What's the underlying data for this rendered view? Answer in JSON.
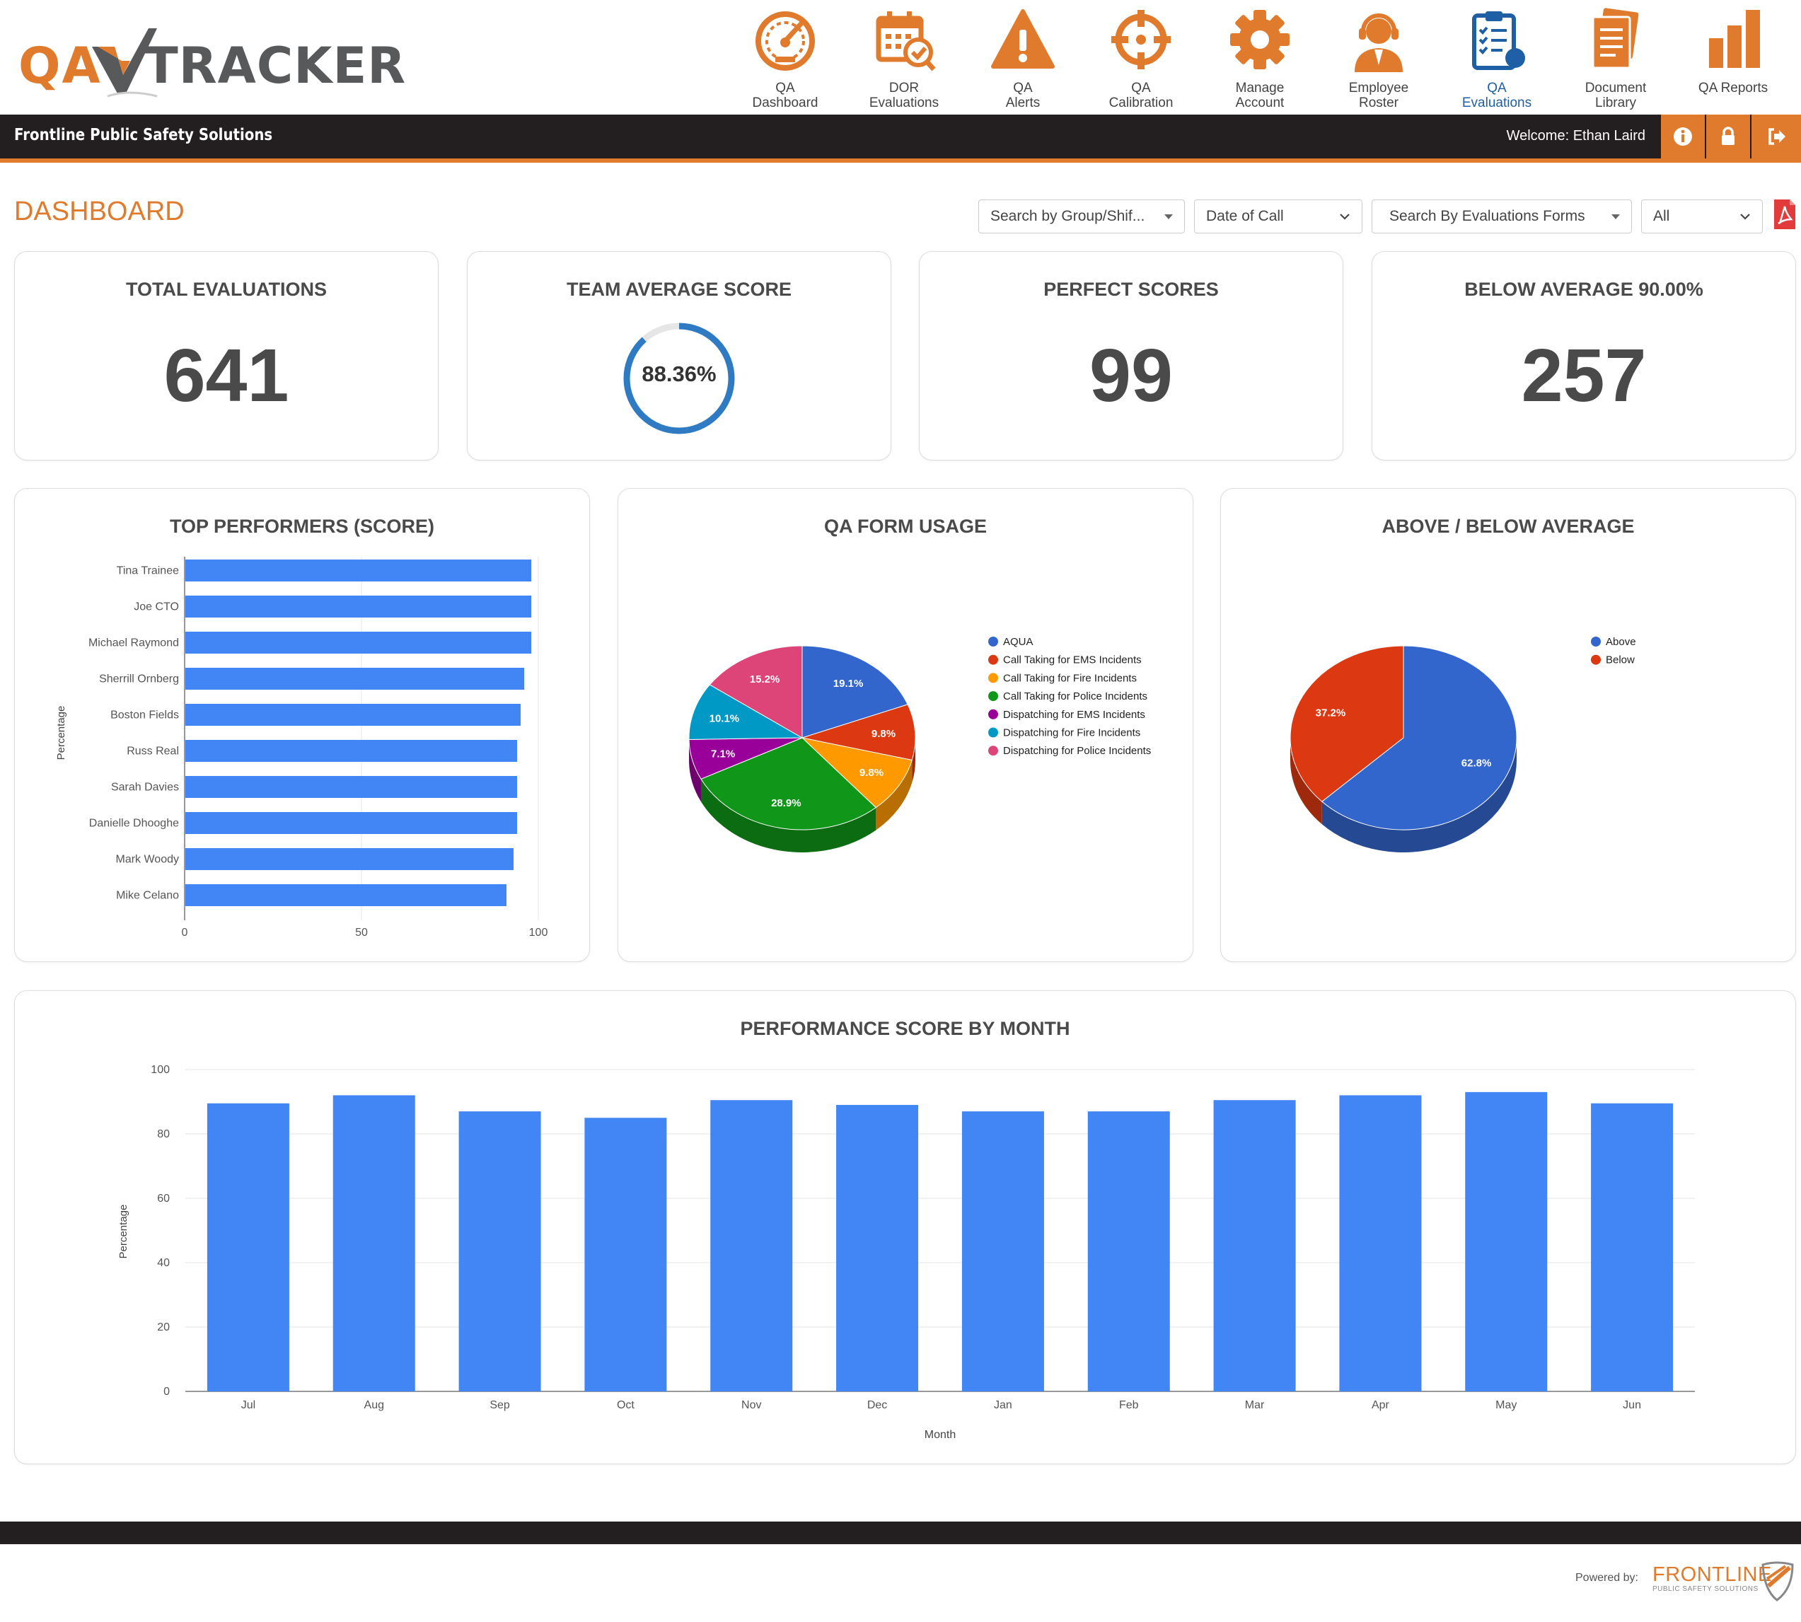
{
  "header": {
    "logo_qa": "QA",
    "logo_tracker": "TRACKER",
    "nav": [
      {
        "label": "QA\nDashboard",
        "icon": "speedometer-icon",
        "active": false
      },
      {
        "label": "DOR\nEvaluations",
        "icon": "calendar-check-icon",
        "active": false
      },
      {
        "label": "QA\nAlerts",
        "icon": "warning-icon",
        "active": false
      },
      {
        "label": "QA\nCalibration",
        "icon": "crosshair-icon",
        "active": false
      },
      {
        "label": "Manage\nAccount",
        "icon": "gear-icon",
        "active": false
      },
      {
        "label": "Employee\nRoster",
        "icon": "headset-user-icon",
        "active": false
      },
      {
        "label": "QA\nEvaluations",
        "icon": "clipboard-checklist-icon",
        "active": true
      },
      {
        "label": "Document\nLibrary",
        "icon": "documents-icon",
        "active": false
      },
      {
        "label": "QA Reports",
        "icon": "bar-chart-icon",
        "active": false
      }
    ]
  },
  "bar": {
    "organization": "Frontline Public Safety Solutions",
    "welcome": "Welcome: Ethan Laird",
    "buttons": [
      "info-icon",
      "lock-icon",
      "logout-icon"
    ]
  },
  "dashboard": {
    "title": "DASHBOARD",
    "filters": {
      "group": "Search by Group/Shif...",
      "date": "Date of Call",
      "forms": "Search By Evaluations Forms",
      "all": "All"
    },
    "pdf_icon": "pdf-icon"
  },
  "stats": {
    "total_evaluations": {
      "title": "TOTAL EVALUATIONS",
      "value": "641"
    },
    "team_average": {
      "title": "TEAM AVERAGE SCORE",
      "value": "88.36%",
      "fraction": 0.8836
    },
    "perfect_scores": {
      "title": "PERFECT SCORES",
      "value": "99"
    },
    "below_average": {
      "title": "BELOW AVERAGE 90.00%",
      "value": "257"
    }
  },
  "colors": {
    "accent": "#e07a2c",
    "bar": "#4285f4",
    "blue": "#3366cc",
    "red": "#dc3912",
    "orange": "#ff9900",
    "green": "#109618",
    "purple": "#990099",
    "teal": "#0099c6",
    "pink": "#dd4477"
  },
  "charts": {
    "top_performers": {
      "title": "TOP PERFORMERS (SCORE)",
      "ylabel": "Percentage",
      "ticks": [
        "0",
        "50",
        "100"
      ]
    },
    "form_usage": {
      "title": "QA FORM USAGE"
    },
    "above_below": {
      "title": "ABOVE / BELOW AVERAGE"
    },
    "monthly": {
      "title": "PERFORMANCE SCORE BY MONTH",
      "ylabel": "Percentage",
      "xlabel": "Month",
      "yticks": [
        "0",
        "20",
        "40",
        "60",
        "80",
        "100"
      ]
    }
  },
  "chart_data": [
    {
      "type": "bar",
      "orientation": "horizontal",
      "title": "TOP PERFORMERS (SCORE)",
      "ylabel": "Percentage",
      "xlim": [
        0,
        100
      ],
      "categories": [
        "Tina Trainee",
        "Joe CTO",
        "Michael Raymond",
        "Sherrill Ornberg",
        "Boston Fields",
        "Russ Real",
        "Sarah Davies",
        "Danielle Dhooghe",
        "Mark Woody",
        "Mike Celano"
      ],
      "values": [
        98,
        98,
        98,
        96,
        95,
        94,
        94,
        94,
        93,
        91
      ],
      "grid": true
    },
    {
      "type": "pie",
      "title": "QA FORM USAGE",
      "legend": "right",
      "categories": [
        "AQUA",
        "Call Taking for EMS Incidents",
        "Call Taking for Fire Incidents",
        "Call Taking for Police Incidents",
        "Dispatching for EMS Incidents",
        "Dispatching for Fire Incidents",
        "Dispatching for Police Incidents"
      ],
      "values": [
        19.1,
        9.8,
        9.8,
        28.9,
        7.1,
        10.1,
        15.2
      ],
      "labels": [
        "19.1%",
        "9.8%",
        "9.8%",
        "28.9%",
        "7.1%",
        "10.1%",
        "15.2%"
      ]
    },
    {
      "type": "pie",
      "title": "ABOVE / BELOW AVERAGE",
      "legend": "right",
      "categories": [
        "Above",
        "Below"
      ],
      "values": [
        62.8,
        37.2
      ],
      "labels": [
        "62.8%",
        "37.2%"
      ]
    },
    {
      "type": "bar",
      "title": "PERFORMANCE SCORE BY MONTH",
      "xlabel": "Month",
      "ylabel": "Percentage",
      "ylim": [
        0,
        100
      ],
      "categories": [
        "Jul",
        "Aug",
        "Sep",
        "Oct",
        "Nov",
        "Dec",
        "Jan",
        "Feb",
        "Mar",
        "Apr",
        "May",
        "Jun"
      ],
      "values": [
        89.5,
        92,
        87,
        85,
        90.5,
        89,
        87,
        87,
        90.5,
        92,
        93,
        89.5
      ],
      "grid": true
    }
  ],
  "footer": {
    "powered_by": "Powered by:",
    "brand": "FRONTLINE",
    "brand_sub": "PUBLIC SAFETY SOLUTIONS"
  }
}
